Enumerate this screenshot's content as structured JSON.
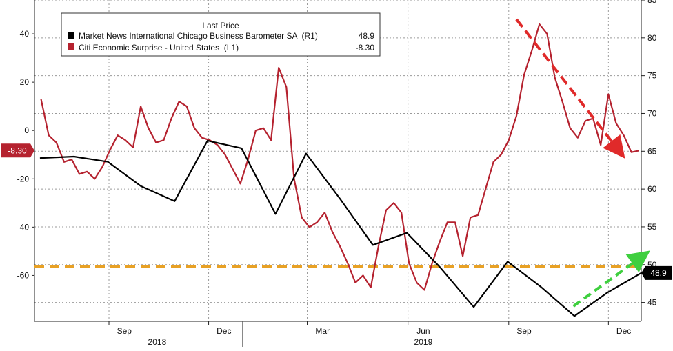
{
  "chart_data": {
    "type": "line",
    "legend": {
      "title": "Last Price",
      "placement": "top-left",
      "entries": [
        {
          "label": "Market News International Chicago Business Barometer SA  (R1)",
          "value": "48.9",
          "color": "#000000"
        },
        {
          "label": "Citi Economic Surprise - United States  (L1)",
          "value": "-8.30",
          "color": "#b5222f"
        }
      ]
    },
    "x_ticks": [
      "Sep",
      "Dec",
      "Mar",
      "Jun",
      "Sep",
      "Dec"
    ],
    "x_years": [
      "2018",
      "2019"
    ],
    "y_left": {
      "ticks": [
        "40",
        "20",
        "0",
        "-20",
        "-40",
        "-60"
      ],
      "range": [
        -79,
        54
      ]
    },
    "y_right": {
      "ticks": [
        "85",
        "80",
        "75",
        "70",
        "65",
        "60",
        "55",
        "50",
        "45"
      ],
      "range": [
        42.5,
        85
      ]
    },
    "grid": true,
    "series": [
      {
        "name": "Citi Economic Surprise - United States",
        "axis": "left",
        "color": "#b5222f",
        "last_value_badge": "-8.30",
        "x": [
          "2018-07-01",
          "2018-07-08",
          "2018-07-15",
          "2018-07-22",
          "2018-07-29",
          "2018-08-05",
          "2018-08-12",
          "2018-08-19",
          "2018-08-26",
          "2018-09-02",
          "2018-09-09",
          "2018-09-16",
          "2018-09-23",
          "2018-09-30",
          "2018-10-07",
          "2018-10-14",
          "2018-10-21",
          "2018-10-28",
          "2018-11-04",
          "2018-11-11",
          "2018-11-18",
          "2018-11-25",
          "2018-12-02",
          "2018-12-09",
          "2018-12-16",
          "2018-12-23",
          "2018-12-30",
          "2019-01-06",
          "2019-01-13",
          "2019-01-20",
          "2019-01-27",
          "2019-02-03",
          "2019-02-10",
          "2019-02-17",
          "2019-02-24",
          "2019-03-03",
          "2019-03-10",
          "2019-03-17",
          "2019-03-24",
          "2019-03-31",
          "2019-04-07",
          "2019-04-14",
          "2019-04-21",
          "2019-04-28",
          "2019-05-05",
          "2019-05-12",
          "2019-05-19",
          "2019-05-26",
          "2019-06-02",
          "2019-06-09",
          "2019-06-16",
          "2019-06-23",
          "2019-06-30",
          "2019-07-07",
          "2019-07-14",
          "2019-07-21",
          "2019-07-28",
          "2019-08-04",
          "2019-08-11",
          "2019-08-18",
          "2019-08-25",
          "2019-09-01",
          "2019-09-08",
          "2019-09-15",
          "2019-09-22",
          "2019-09-29",
          "2019-10-06",
          "2019-10-13",
          "2019-10-20",
          "2019-10-27",
          "2019-11-03",
          "2019-11-10",
          "2019-11-17",
          "2019-11-24",
          "2019-12-01",
          "2019-12-08",
          "2019-12-15",
          "2019-12-22",
          "2019-12-29"
        ],
        "values": [
          13,
          -2,
          -5,
          -13,
          -12,
          -18,
          -17,
          -20,
          -15,
          -8,
          -2,
          -4,
          -7,
          10,
          1,
          -5,
          -4,
          5,
          12,
          10,
          1,
          -3,
          -4,
          -6,
          -10,
          -16,
          -22,
          -12,
          0,
          1,
          -4,
          26,
          18,
          -20,
          -36,
          -40,
          -38,
          -34,
          -42,
          -48,
          -55,
          -63,
          -60,
          -65,
          -48,
          -33,
          -30,
          -34,
          -55,
          -63,
          -66,
          -55,
          -46,
          -38,
          -38,
          -52,
          -36,
          -35,
          -24,
          -13,
          -10,
          -4,
          6,
          23,
          33,
          44,
          40,
          22,
          12,
          1,
          -3,
          4,
          5,
          -6,
          15,
          3,
          -2,
          -9,
          -8.3
        ]
      },
      {
        "name": "Market News International Chicago Business Barometer SA",
        "axis": "right",
        "color": "#000000",
        "last_value_badge": "48.9",
        "x": [
          "2018-06-30",
          "2018-07-31",
          "2018-08-31",
          "2018-09-30",
          "2018-10-31",
          "2018-11-30",
          "2018-12-31",
          "2019-01-31",
          "2019-02-28",
          "2019-03-31",
          "2019-04-30",
          "2019-05-31",
          "2019-06-30",
          "2019-07-31",
          "2019-08-31",
          "2019-09-30",
          "2019-10-31",
          "2019-11-30",
          "2019-12-31"
        ],
        "values": [
          64.1,
          64.3,
          63.6,
          60.4,
          58.4,
          66.4,
          65.4,
          56.7,
          64.7,
          58.7,
          52.6,
          54.2,
          49.7,
          44.4,
          50.4,
          47.1,
          43.2,
          46.3,
          48.9
        ]
      }
    ],
    "annotations": [
      {
        "type": "horizontal-dashed-line",
        "axis": "right",
        "value": 49.7,
        "color": "#e8a125"
      },
      {
        "type": "arrow",
        "color": "#e02a2a",
        "from": {
          "x": "2019-09-08",
          "y_left": 46
        },
        "to": {
          "x": "2019-12-10",
          "y_left": -8
        }
      },
      {
        "type": "arrow",
        "color": "#3fcf3f",
        "from": {
          "x": "2019-10-30",
          "axis": "right",
          "y": 44.5
        },
        "to": {
          "x": "2019-12-31",
          "axis": "right",
          "y": 51
        }
      }
    ]
  }
}
